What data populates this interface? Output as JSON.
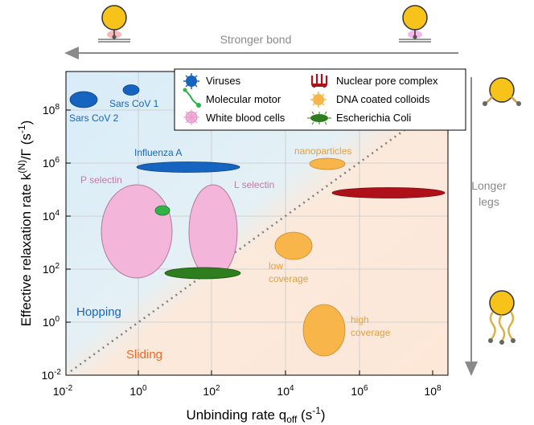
{
  "header": {
    "stronger_bond": "Stronger bond"
  },
  "side": {
    "longer_legs_1": "Longer",
    "longer_legs_2": "legs"
  },
  "axes": {
    "ylabel_main": "Effective relaxation rate k",
    "ylabel_sup": "(N)",
    "ylabel_tail": "/Γ (s",
    "ylabel_exp": "-1",
    "ylabel_close": ")",
    "xlabel_main": "Unbinding rate q",
    "xlabel_sub": "off",
    "xlabel_tail": " (s",
    "xlabel_exp": "-1",
    "xlabel_close": ")",
    "x_ticks": [
      {
        "base": "10",
        "exp": "-2"
      },
      {
        "base": "10",
        "exp": "0"
      },
      {
        "base": "10",
        "exp": "2"
      },
      {
        "base": "10",
        "exp": "4"
      },
      {
        "base": "10",
        "exp": "6"
      },
      {
        "base": "10",
        "exp": "8"
      }
    ],
    "y_ticks": [
      {
        "base": "10",
        "exp": "-2"
      },
      {
        "base": "10",
        "exp": "0"
      },
      {
        "base": "10",
        "exp": "2"
      },
      {
        "base": "10",
        "exp": "4"
      },
      {
        "base": "10",
        "exp": "6"
      },
      {
        "base": "10",
        "exp": "8"
      }
    ]
  },
  "regions": {
    "hopping": "Hopping",
    "sliding": "Sliding"
  },
  "legend": {
    "viruses": "Viruses",
    "molecular_motor": "Molecular motor",
    "white_blood_cells": "White blood cells",
    "nuclear_pore": "Nuclear pore complex",
    "dna_colloids": "DNA coated colloids",
    "ecoli": "Escherichia Coli"
  },
  "annotations": {
    "sars_cov_1": "Sars CoV 1",
    "sars_cov_2": "Sars CoV 2",
    "influenza_a": "Influenza A",
    "p_selectin": "P selectin",
    "l_selectin": "L selectin",
    "nanoparticles": "nanoparticles",
    "low_coverage_1": "low",
    "low_coverage_2": "coverage",
    "high_coverage_1": "high",
    "high_coverage_2": "coverage"
  },
  "colors": {
    "hopping_bg": "#dcedf7",
    "sliding_bg": "#fdeadb",
    "virus": "#1565c0",
    "motor": "#2fb34a",
    "wbc": "#f3b6da",
    "npc": "#b0101a",
    "dna": "#f7b54a",
    "ecoli": "#2e7d1e",
    "hopping_text": "#1565c0",
    "sliding_text": "#f0682a"
  }
}
